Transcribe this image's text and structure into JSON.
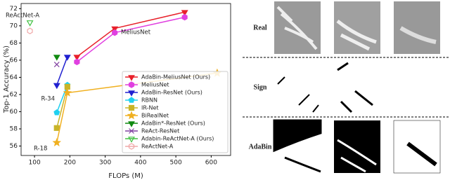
{
  "chart_data": {
    "type": "line",
    "xlabel": "FLOPs (M)",
    "ylabel": "Top-1 Accuracy (%)",
    "xlim": [
      62,
      655
    ],
    "ylim": [
      54.9,
      72.6
    ],
    "xticks": [
      100,
      200,
      300,
      400,
      500,
      600
    ],
    "yticks": [
      56,
      58,
      60,
      62,
      64,
      66,
      68,
      70,
      72
    ],
    "legend_loc": "lower right",
    "annotations": [
      "ReActNet-A",
      "MeliusNet",
      "R-34",
      "R-18"
    ],
    "series": [
      {
        "name": "AdaBin-MeliusNet (Ours)",
        "color": "#e8202a",
        "marker": "v",
        "line": true,
        "x": [
          220,
          327,
          525
        ],
        "values": [
          66.4,
          69.7,
          71.6
        ]
      },
      {
        "name": "MeliusNet",
        "color": "#e040e0",
        "marker": "h",
        "line": true,
        "x": [
          220,
          327,
          525
        ],
        "values": [
          65.8,
          69.2,
          71.0
        ]
      },
      {
        "name": "AdaBin-ResNet (Ours)",
        "color": "#2020d0",
        "marker": "v",
        "line": true,
        "x": [
          163,
          193
        ],
        "values": [
          63.1,
          66.4
        ]
      },
      {
        "name": "RBNN",
        "color": "#20d0f0",
        "marker": "p",
        "line": true,
        "x": [
          163,
          193
        ],
        "values": [
          59.9,
          63.1
        ]
      },
      {
        "name": "IR-Net",
        "color": "#c8b428",
        "marker": "s",
        "line": true,
        "x": [
          163,
          193
        ],
        "values": [
          58.1,
          62.9
        ]
      },
      {
        "name": "BiRealNet",
        "color": "#f0b020",
        "marker": "*",
        "line": true,
        "x": [
          163,
          193,
          617
        ],
        "values": [
          56.4,
          62.2,
          64.5
        ]
      },
      {
        "name": "AdaBin*-ResNet (Ours)",
        "color": "#108a10",
        "marker": "v",
        "line": false,
        "x": [
          163
        ],
        "values": [
          66.4
        ]
      },
      {
        "name": "ReAct-ResNet",
        "color": "#8040a0",
        "marker": "x",
        "line": false,
        "x": [
          163
        ],
        "values": [
          65.5
        ]
      },
      {
        "name": "Adabin-ReActNet-A (Ours)",
        "color": "#40c040",
        "marker": "vo",
        "line": false,
        "x": [
          87
        ],
        "values": [
          70.4
        ]
      },
      {
        "name": "ReActNet-A",
        "color": "#f0a8a8",
        "marker": "ho",
        "line": false,
        "x": [
          87
        ],
        "values": [
          69.4
        ]
      }
    ]
  },
  "image_grid": {
    "row_labels": [
      "Real",
      "Sign",
      "AdaBin"
    ]
  }
}
